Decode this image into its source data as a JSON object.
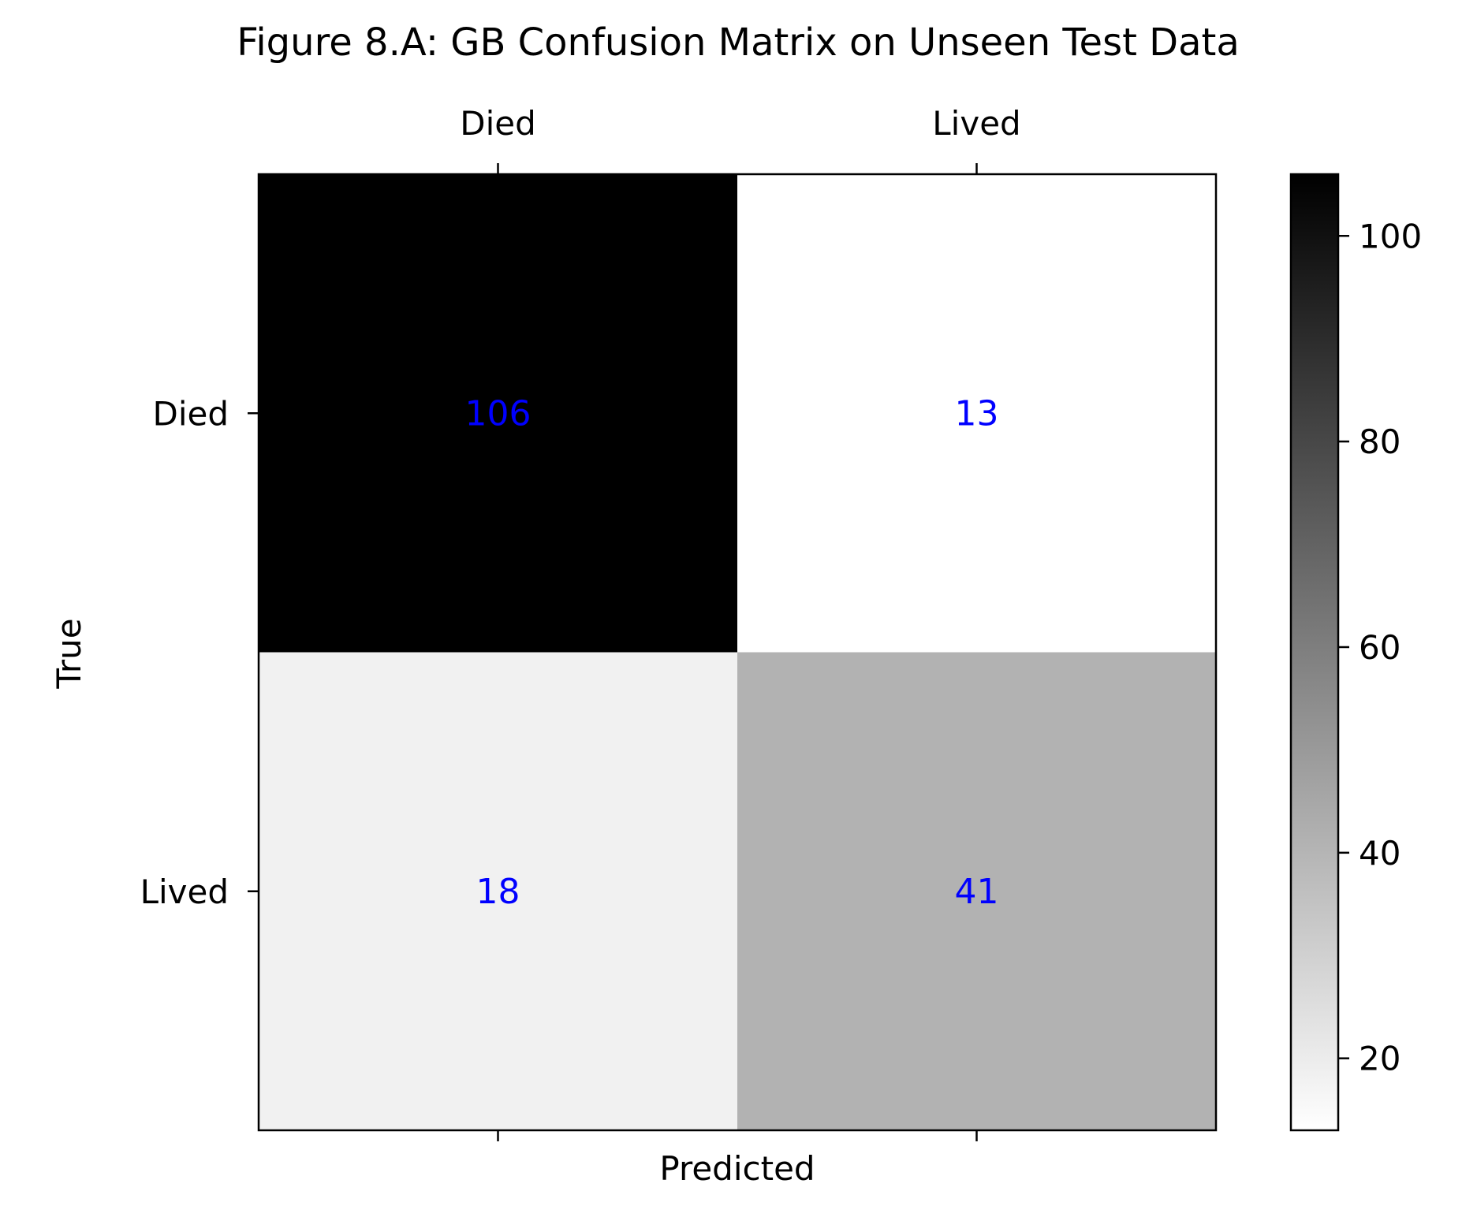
{
  "chart_data": {
    "type": "heatmap",
    "title": "Figure 8.A: GB Confusion Matrix on Unseen Test Data",
    "xlabel": "Predicted",
    "ylabel": "True",
    "x_categories": [
      "Died",
      "Lived"
    ],
    "y_categories": [
      "Died",
      "Lived"
    ],
    "values": [
      [
        106,
        13
      ],
      [
        18,
        41
      ]
    ],
    "colormap": "gray_r",
    "annotation_color": "#0000ff",
    "colorbar": {
      "range": [
        13,
        106
      ],
      "ticks": [
        20,
        40,
        60,
        80,
        100
      ],
      "tick_labels": [
        "20",
        "40",
        "60",
        "80",
        "100"
      ]
    },
    "x_tick_position": "top",
    "grid": false
  }
}
